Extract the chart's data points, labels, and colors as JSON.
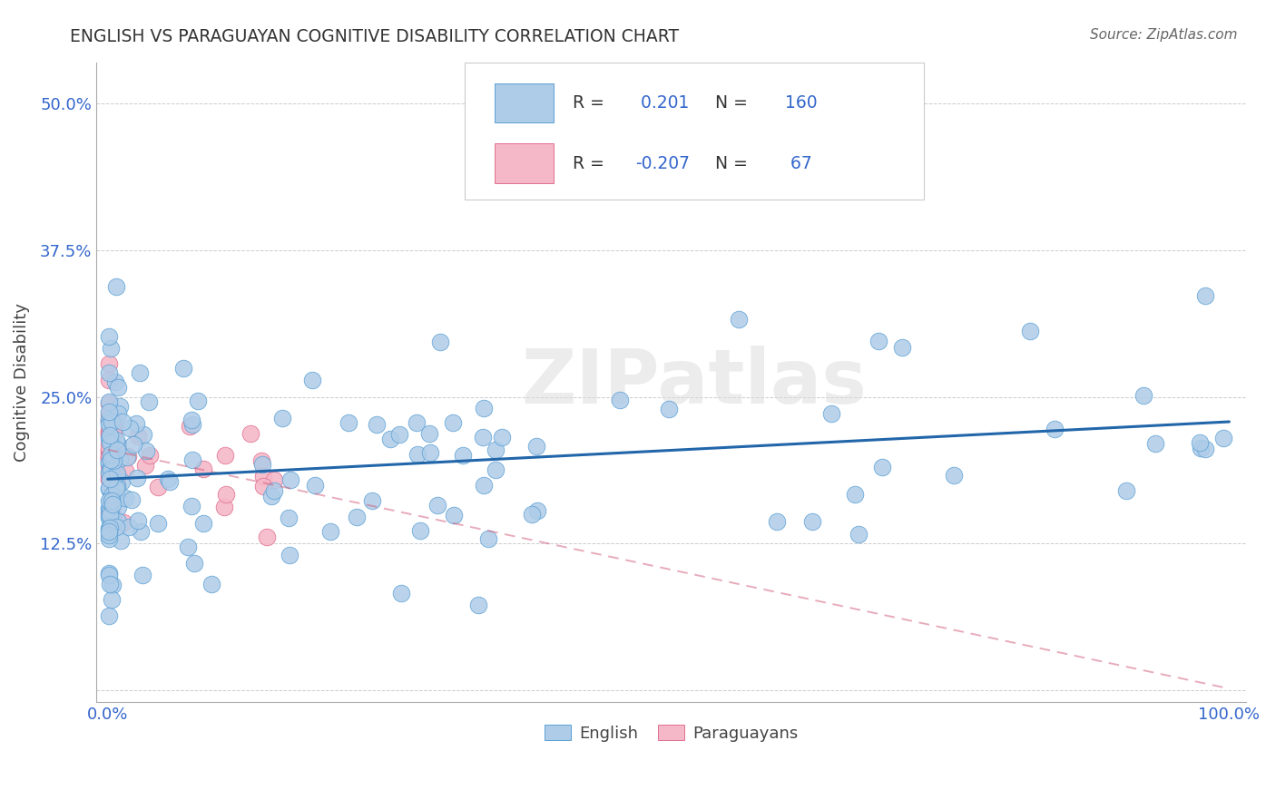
{
  "title": "ENGLISH VS PARAGUAYAN COGNITIVE DISABILITY CORRELATION CHART",
  "source": "Source: ZipAtlas.com",
  "ylabel": "Cognitive Disability",
  "y_ticks": [
    0.0,
    0.125,
    0.25,
    0.375,
    0.5
  ],
  "y_tick_labels": [
    "",
    "12.5%",
    "25.0%",
    "37.5%",
    "50.0%"
  ],
  "english_R": 0.201,
  "english_N": 160,
  "paraguayan_R": -0.207,
  "paraguayan_N": 67,
  "english_color": "#aecce8",
  "english_edge_color": "#5a9fd4",
  "english_line_color": "#2266aa",
  "paraguayan_color": "#f5b8c8",
  "paraguayan_edge_color": "#e07090",
  "paraguayan_line_color": "#d05878",
  "background_color": "#ffffff",
  "watermark": "ZIPatlas",
  "legend_label_color": "#333333",
  "legend_value_color": "#3366cc",
  "axis_tick_color": "#3366cc",
  "title_color": "#333333",
  "source_color": "#666666"
}
